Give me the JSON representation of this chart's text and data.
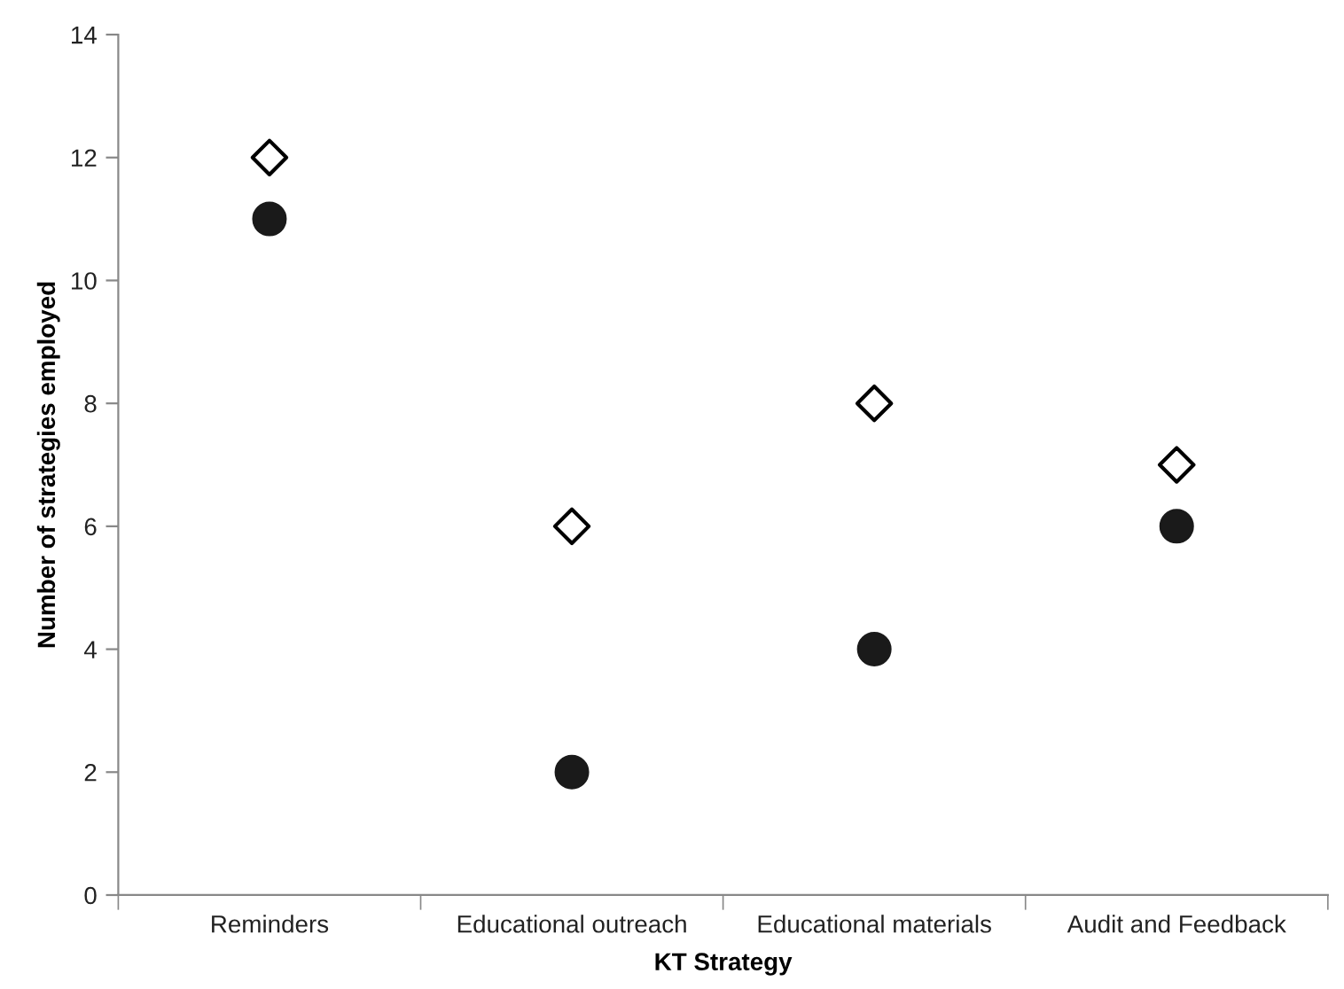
{
  "chart_data": {
    "type": "scatter",
    "xlabel": "KT Strategy",
    "ylabel": "Number of strategies employed",
    "categories": [
      "Reminders",
      "Educational outreach",
      "Educational materials",
      "Audit and Feedback"
    ],
    "series": [
      {
        "color": "#000000",
        "marker": "diamond",
        "values": [
          12,
          6,
          8,
          7
        ]
      },
      {
        "color": "#1a1a1a",
        "marker": "circle",
        "values": [
          11,
          2,
          4,
          6
        ]
      }
    ],
    "ylim": [
      0,
      14
    ],
    "yticks": [
      0,
      2,
      4,
      6,
      8,
      10,
      12,
      14
    ],
    "grid": false,
    "legend": false
  }
}
